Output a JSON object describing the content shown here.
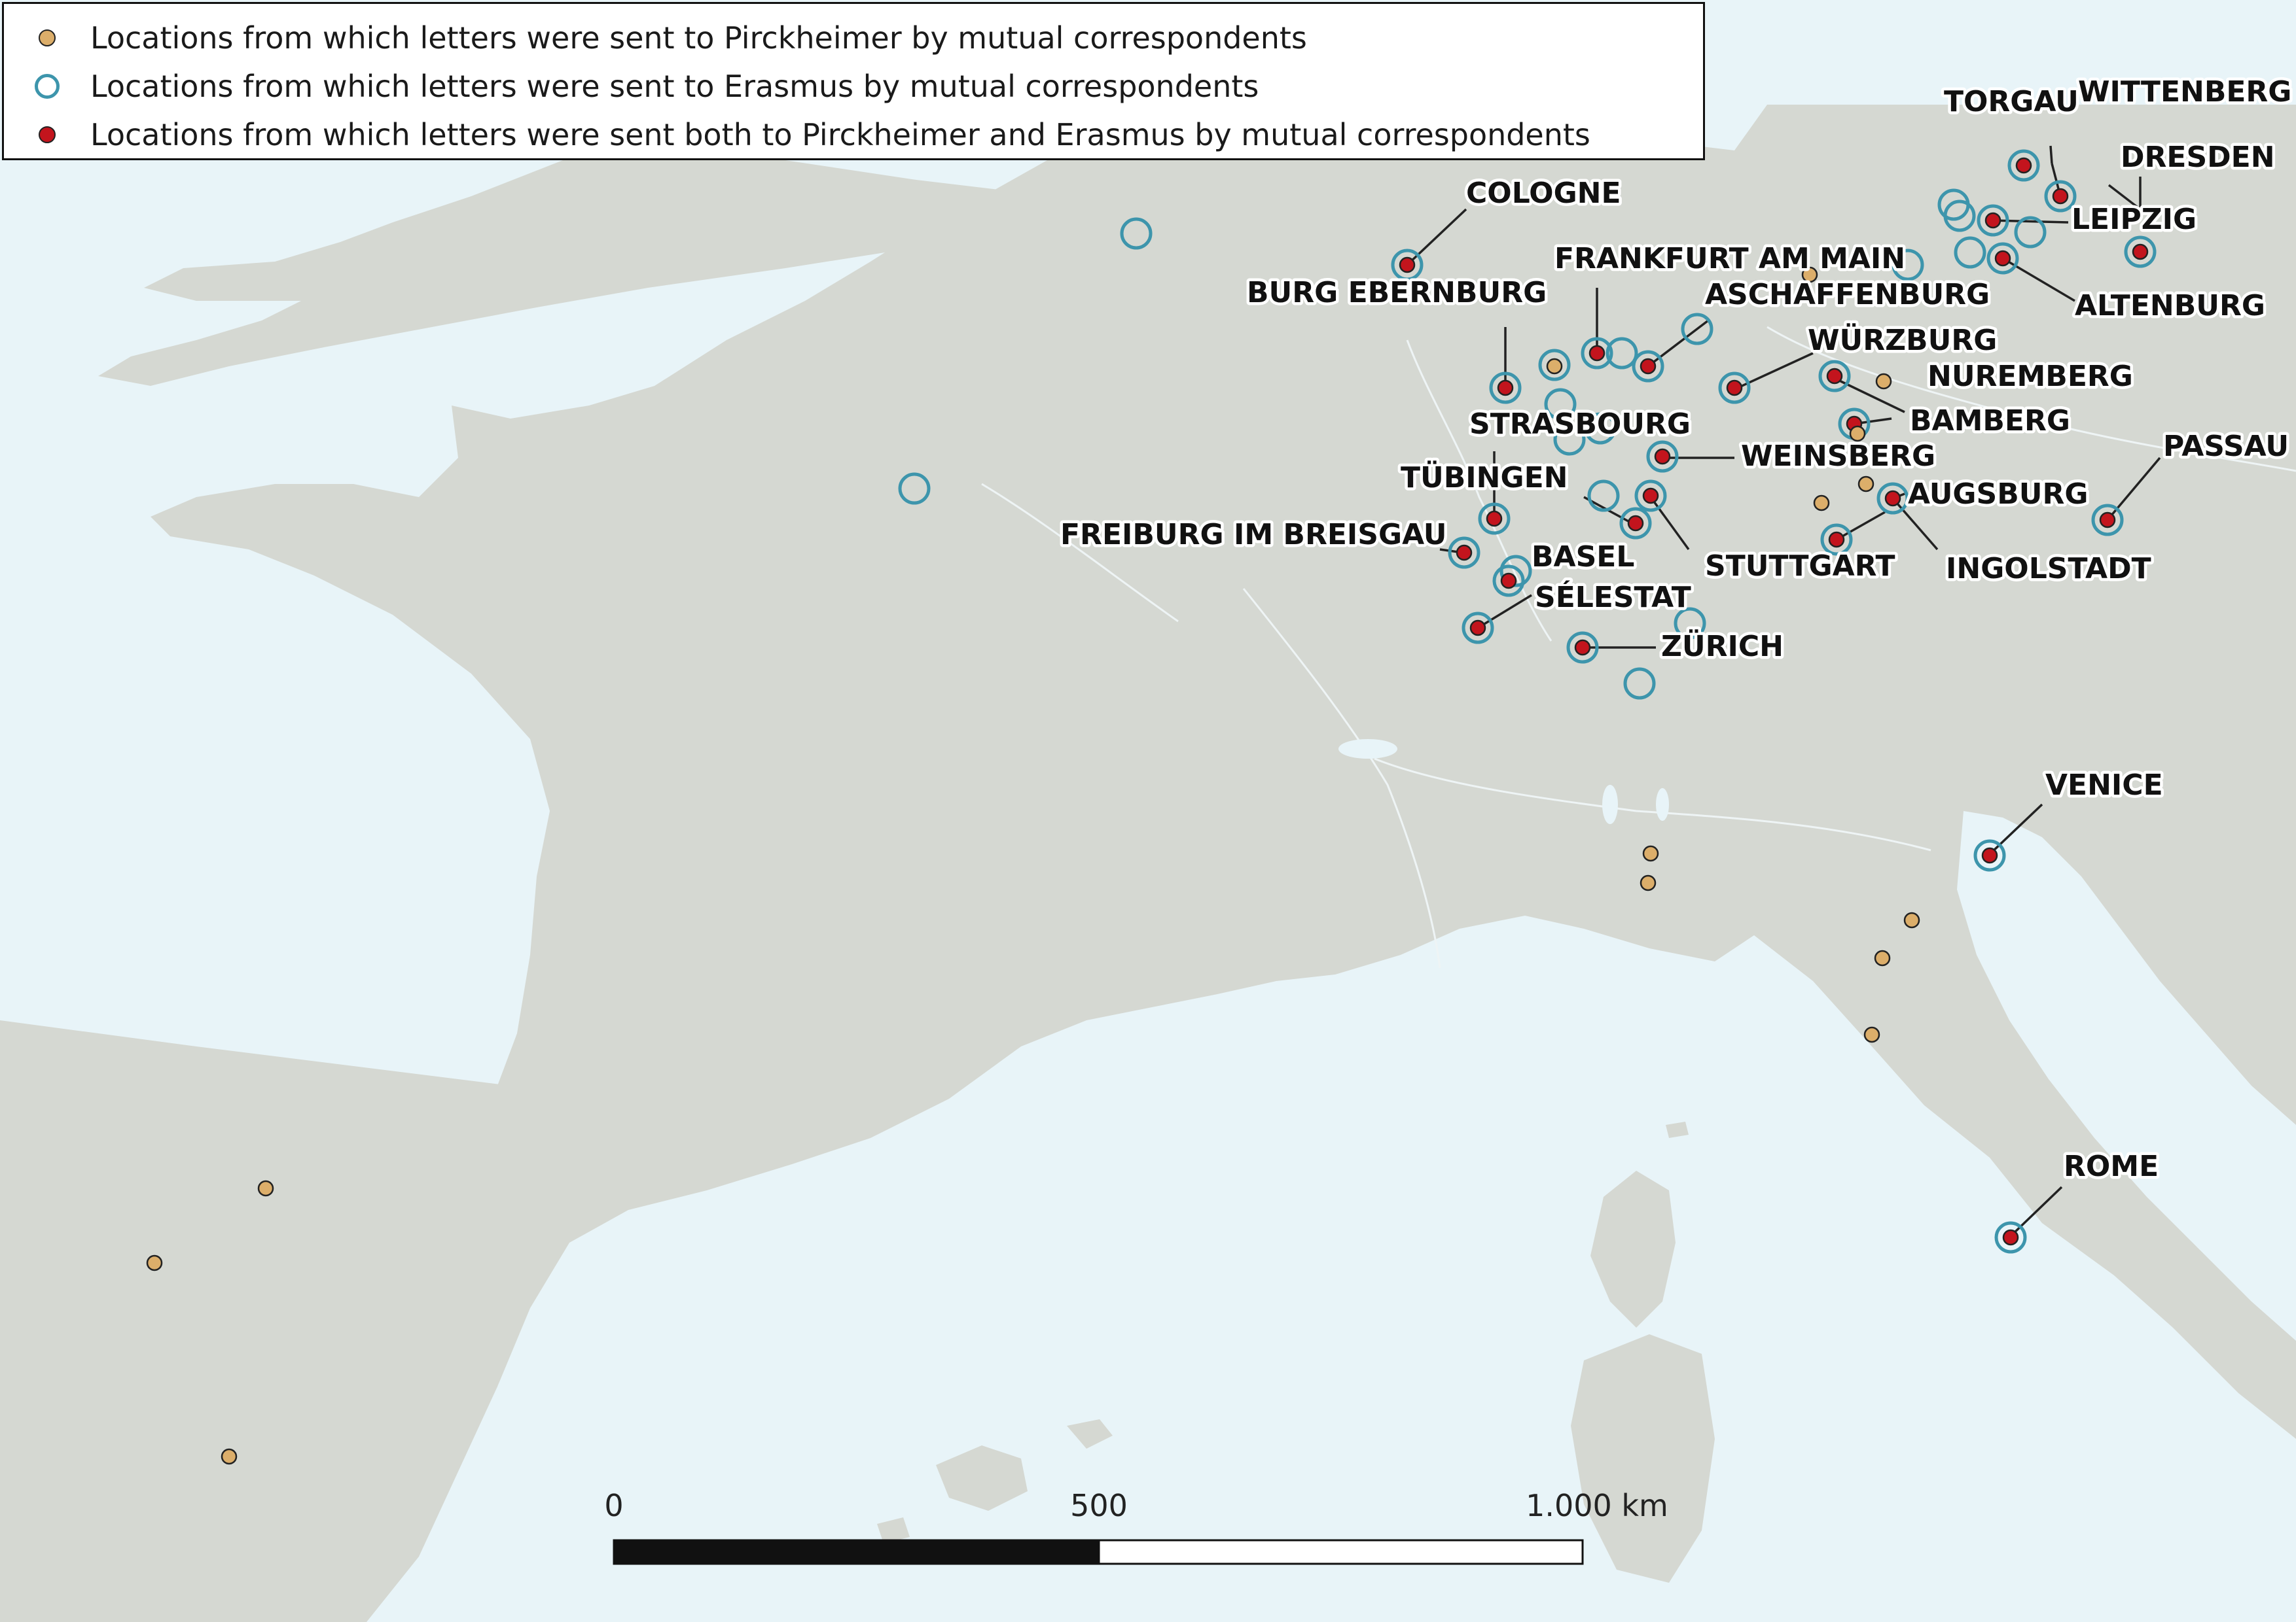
{
  "legend": {
    "pirckheimer": "Locations from which letters were sent to Pirckheimer by mutual correspondents",
    "erasmus": "Locations from which letters were sent to Erasmus by mutual correspondents",
    "both": "Locations from which letters were sent both to Pirckheimer and Erasmus by mutual correspondents"
  },
  "colors": {
    "sea": "#e8f4f8",
    "land": "#d5d8d2",
    "pirckheimer": "#dcae6a",
    "erasmus": "#3d95ac",
    "both": "#c3141d"
  },
  "scale_bar": {
    "labels": [
      "0",
      "500",
      "1.000 km"
    ]
  },
  "cities": [
    "COLOGNE",
    "BURG EBERNBURG",
    "FRANKFURT AM MAIN",
    "ASCHAFFENBURG",
    "WÜRZBURG",
    "NUREMBERG",
    "BAMBERG",
    "STRASBOURG",
    "WEINSBERG",
    "TÜBINGEN",
    "AUGSBURG",
    "FREIBURG IM BREISGAU",
    "BASEL",
    "STUTTGART",
    "INGOLSTADT",
    "SÉLESTAT",
    "ZÜRICH",
    "TORGAU",
    "WITTENBERG",
    "DRESDEN",
    "LEIPZIG",
    "ALTENBURG",
    "PASSAU",
    "VENICE",
    "ROME"
  ]
}
